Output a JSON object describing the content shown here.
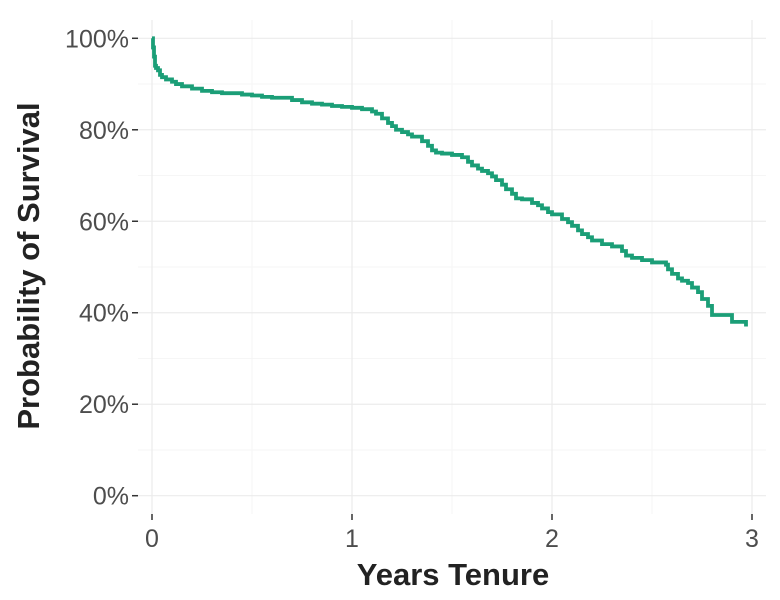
{
  "chart_data": {
    "type": "line",
    "step": true,
    "xlabel": "Years Tenure",
    "ylabel": "Probability of Survival",
    "xlim": [
      -0.07,
      3.07
    ],
    "ylim": [
      -0.04,
      1.04
    ],
    "x_ticks": [
      0,
      1,
      2,
      3
    ],
    "x_tick_labels": [
      "0",
      "1",
      "2",
      "3"
    ],
    "y_ticks": [
      0,
      0.2,
      0.4,
      0.6,
      0.8,
      1.0
    ],
    "y_tick_labels": [
      "0%",
      "20%",
      "40%",
      "60%",
      "80%",
      "100%"
    ],
    "grid": true,
    "legend": "none",
    "series": [
      {
        "color": "#1b9e77",
        "x": [
          0,
          0.005,
          0.01,
          0.015,
          0.02,
          0.03,
          0.04,
          0.05,
          0.07,
          0.1,
          0.12,
          0.15,
          0.2,
          0.25,
          0.3,
          0.35,
          0.45,
          0.5,
          0.55,
          0.6,
          0.7,
          0.75,
          0.8,
          0.85,
          0.9,
          0.95,
          1.0,
          1.05,
          1.1,
          1.12,
          1.15,
          1.18,
          1.2,
          1.22,
          1.25,
          1.28,
          1.3,
          1.35,
          1.38,
          1.4,
          1.42,
          1.45,
          1.5,
          1.55,
          1.58,
          1.6,
          1.63,
          1.65,
          1.68,
          1.7,
          1.72,
          1.75,
          1.77,
          1.8,
          1.82,
          1.85,
          1.9,
          1.93,
          1.95,
          1.98,
          2.0,
          2.05,
          2.08,
          2.1,
          2.13,
          2.15,
          2.18,
          2.2,
          2.25,
          2.3,
          2.35,
          2.37,
          2.4,
          2.45,
          2.5,
          2.55,
          2.57,
          2.58,
          2.6,
          2.63,
          2.65,
          2.68,
          2.7,
          2.73,
          2.75,
          2.78,
          2.8,
          2.9,
          2.97
        ],
        "y": [
          1.0,
          0.98,
          0.96,
          0.94,
          0.935,
          0.93,
          0.92,
          0.915,
          0.91,
          0.905,
          0.9,
          0.895,
          0.89,
          0.885,
          0.882,
          0.88,
          0.877,
          0.875,
          0.872,
          0.87,
          0.865,
          0.86,
          0.857,
          0.855,
          0.852,
          0.85,
          0.848,
          0.845,
          0.84,
          0.835,
          0.825,
          0.815,
          0.808,
          0.8,
          0.795,
          0.79,
          0.785,
          0.775,
          0.765,
          0.755,
          0.75,
          0.748,
          0.745,
          0.74,
          0.73,
          0.722,
          0.715,
          0.71,
          0.705,
          0.698,
          0.69,
          0.68,
          0.67,
          0.66,
          0.65,
          0.648,
          0.64,
          0.635,
          0.628,
          0.62,
          0.615,
          0.605,
          0.598,
          0.59,
          0.58,
          0.572,
          0.565,
          0.558,
          0.55,
          0.545,
          0.535,
          0.525,
          0.52,
          0.515,
          0.51,
          0.51,
          0.505,
          0.495,
          0.485,
          0.475,
          0.47,
          0.465,
          0.455,
          0.445,
          0.43,
          0.415,
          0.395,
          0.38,
          0.37
        ]
      }
    ]
  }
}
